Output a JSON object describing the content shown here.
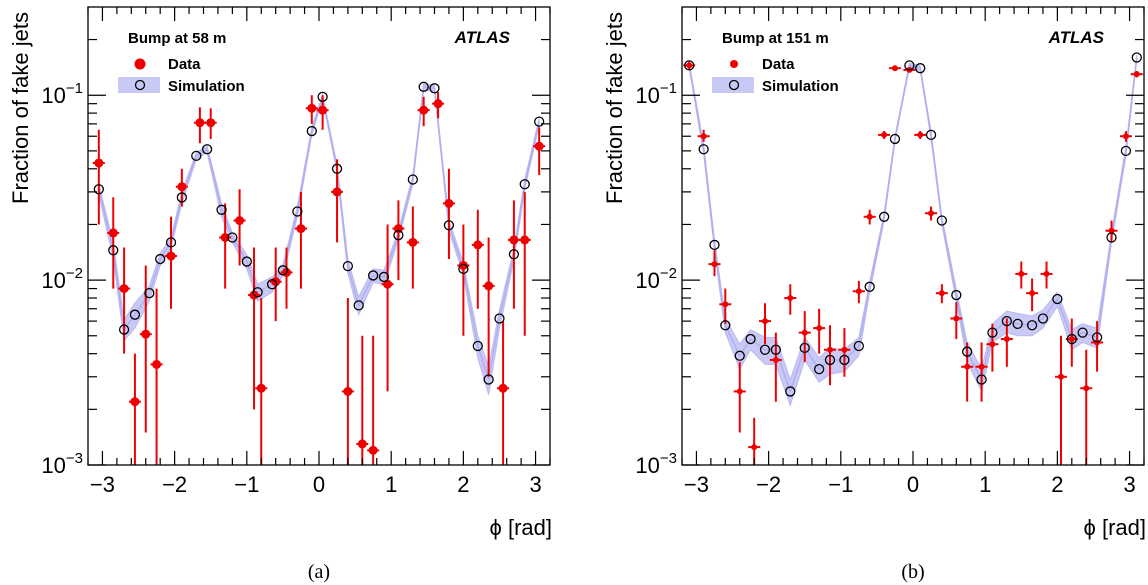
{
  "chart_data": [
    {
      "type": "scatter",
      "panel_label": "(a)",
      "xlabel": "ϕ [rad]",
      "ylabel": "Fraction of fake jets",
      "xlim": [
        -3.2,
        3.2
      ],
      "ylim": [
        0.001,
        0.3
      ],
      "yscale": "log",
      "xticks": [
        -3,
        -2,
        -1,
        0,
        1,
        2,
        3
      ],
      "xtick_labels": [
        "−3",
        "−2",
        "−1",
        "0",
        "1",
        "2",
        "3"
      ],
      "ytick_labels": [
        {
          "value": 0.001,
          "base": "10",
          "exp": "−3"
        },
        {
          "value": 0.01,
          "base": "10",
          "exp": "−2"
        },
        {
          "value": 0.1,
          "base": "10",
          "exp": "−1"
        }
      ],
      "legend_title": "Bump at 58 m",
      "experiment_label": "ATLAS",
      "legend_position": "top-left",
      "series": [
        {
          "name": "Data",
          "style": "red-dot-error",
          "color": "#ee0000",
          "x": [
            -3.05,
            -2.85,
            -2.7,
            -2.55,
            -2.4,
            -2.25,
            -2.05,
            -1.9,
            -1.65,
            -1.5,
            -1.3,
            -1.1,
            -0.9,
            -0.8,
            -0.6,
            -0.45,
            -0.25,
            -0.1,
            0.05,
            0.25,
            0.4,
            0.6,
            0.75,
            0.95,
            1.1,
            1.3,
            1.45,
            1.65,
            1.8,
            2.0,
            2.2,
            2.35,
            2.55,
            2.7,
            2.85,
            3.05
          ],
          "y": [
            0.043,
            0.018,
            0.009,
            0.0022,
            0.0051,
            0.0035,
            0.0135,
            0.032,
            0.071,
            0.071,
            0.017,
            0.021,
            0.0083,
            0.0026,
            0.0098,
            0.011,
            0.019,
            0.085,
            0.083,
            0.03,
            0.0025,
            0.0013,
            0.0012,
            0.0095,
            0.019,
            0.016,
            0.083,
            0.09,
            0.026,
            0.012,
            0.0155,
            0.0093,
            0.0026,
            0.0165,
            0.0165,
            0.053
          ],
          "ylo": [
            0.02,
            0.009,
            0.004,
            0.0008,
            0.0015,
            0.0008,
            0.007,
            0.025,
            0.055,
            0.058,
            0.009,
            0.012,
            0.002,
            0.0006,
            0.006,
            0.007,
            0.009,
            0.07,
            0.065,
            0.016,
            0.0006,
            0.0004,
            0.0003,
            0.0025,
            0.01,
            0.009,
            0.068,
            0.075,
            0.013,
            0.005,
            0.007,
            0.003,
            0.0007,
            0.007,
            0.005,
            0.037
          ],
          "yhi": [
            0.065,
            0.028,
            0.015,
            0.004,
            0.012,
            0.009,
            0.022,
            0.04,
            0.086,
            0.085,
            0.026,
            0.031,
            0.015,
            0.008,
            0.015,
            0.015,
            0.03,
            0.1,
            0.1,
            0.045,
            0.008,
            0.005,
            0.005,
            0.02,
            0.027,
            0.025,
            0.098,
            0.104,
            0.04,
            0.02,
            0.024,
            0.017,
            0.006,
            0.027,
            0.03,
            0.067
          ]
        },
        {
          "name": "Simulation",
          "style": "open-circle-band",
          "color": "#aaaaff",
          "x": [
            -3.05,
            -2.85,
            -2.7,
            -2.55,
            -2.35,
            -2.2,
            -2.05,
            -1.9,
            -1.7,
            -1.55,
            -1.35,
            -1.2,
            -1.0,
            -0.85,
            -0.65,
            -0.5,
            -0.3,
            -0.1,
            0.05,
            0.25,
            0.4,
            0.55,
            0.75,
            0.9,
            1.1,
            1.3,
            1.45,
            1.6,
            1.8,
            2.0,
            2.2,
            2.35,
            2.5,
            2.7,
            2.85,
            3.05
          ],
          "y": [
            0.031,
            0.0145,
            0.0054,
            0.0065,
            0.0085,
            0.013,
            0.016,
            0.028,
            0.047,
            0.051,
            0.024,
            0.017,
            0.0126,
            0.0086,
            0.0095,
            0.0113,
            0.0235,
            0.064,
            0.098,
            0.04,
            0.0119,
            0.0073,
            0.0106,
            0.0104,
            0.0175,
            0.035,
            0.111,
            0.109,
            0.0198,
            0.0115,
            0.0044,
            0.0029,
            0.0062,
            0.0138,
            0.033,
            0.072
          ],
          "band_lo": [
            0.029,
            0.013,
            0.0047,
            0.0055,
            0.0077,
            0.012,
            0.015,
            0.026,
            0.045,
            0.049,
            0.022,
            0.016,
            0.0115,
            0.0077,
            0.0086,
            0.0105,
            0.022,
            0.061,
            0.095,
            0.038,
            0.0109,
            0.0065,
            0.0097,
            0.0095,
            0.0165,
            0.033,
            0.107,
            0.105,
            0.0185,
            0.0106,
            0.0038,
            0.0024,
            0.0055,
            0.0128,
            0.031,
            0.069
          ],
          "band_hi": [
            0.033,
            0.016,
            0.0061,
            0.0075,
            0.0093,
            0.014,
            0.017,
            0.03,
            0.049,
            0.053,
            0.026,
            0.018,
            0.0137,
            0.0095,
            0.0104,
            0.0121,
            0.025,
            0.067,
            0.101,
            0.042,
            0.0129,
            0.0081,
            0.0115,
            0.0113,
            0.0185,
            0.037,
            0.115,
            0.113,
            0.0211,
            0.0124,
            0.005,
            0.0034,
            0.0069,
            0.0148,
            0.035,
            0.075
          ]
        }
      ]
    },
    {
      "type": "scatter",
      "panel_label": "(b)",
      "xlabel": "ϕ [rad]",
      "ylabel": "Fraction of fake jets",
      "xlim": [
        -3.2,
        3.2
      ],
      "ylim": [
        0.001,
        0.3
      ],
      "yscale": "log",
      "xticks": [
        -3,
        -2,
        -1,
        0,
        1,
        2,
        3
      ],
      "xtick_labels": [
        "−3",
        "−2",
        "−1",
        "0",
        "1",
        "2",
        "3"
      ],
      "ytick_labels": [
        {
          "value": 0.001,
          "base": "10",
          "exp": "−3"
        },
        {
          "value": 0.01,
          "base": "10",
          "exp": "−2"
        },
        {
          "value": 0.1,
          "base": "10",
          "exp": "−1"
        }
      ],
      "legend_title": "Bump at 151 m",
      "experiment_label": "ATLAS",
      "legend_position": "top-left",
      "series": [
        {
          "name": "Data",
          "style": "red-small-dot-error",
          "color": "#ee0000",
          "x": [
            -3.1,
            -2.9,
            -2.75,
            -2.6,
            -2.4,
            -2.2,
            -2.05,
            -1.9,
            -1.7,
            -1.5,
            -1.3,
            -1.15,
            -0.95,
            -0.75,
            -0.6,
            -0.4,
            -0.25,
            -0.05,
            0.1,
            0.25,
            0.4,
            0.6,
            0.75,
            0.95,
            1.1,
            1.3,
            1.5,
            1.65,
            1.85,
            2.05,
            2.2,
            2.4,
            2.55,
            2.75,
            2.95,
            3.1
          ],
          "y": [
            0.145,
            0.06,
            0.0122,
            0.0074,
            0.0025,
            0.00125,
            0.006,
            0.0037,
            0.008,
            0.0052,
            0.0055,
            0.0042,
            0.0042,
            0.0087,
            0.022,
            0.061,
            0.14,
            0.137,
            0.061,
            0.023,
            0.0085,
            0.0062,
            0.0034,
            0.0034,
            0.0045,
            0.0048,
            0.0108,
            0.0085,
            0.0108,
            0.003,
            0.0048,
            0.0026,
            0.0046,
            0.0185,
            0.06,
            0.13
          ],
          "ylo": [
            0.138,
            0.056,
            0.0105,
            0.0058,
            0.0015,
            0.0008,
            0.0045,
            0.0022,
            0.0065,
            0.0036,
            0.004,
            0.0027,
            0.003,
            0.0075,
            0.02,
            0.058,
            0.136,
            0.133,
            0.058,
            0.021,
            0.0075,
            0.0048,
            0.0022,
            0.0022,
            0.0032,
            0.0034,
            0.009,
            0.0068,
            0.009,
            0.001,
            0.0034,
            0.001,
            0.0032,
            0.016,
            0.056,
            0.125
          ],
          "yhi": [
            0.152,
            0.065,
            0.0145,
            0.009,
            0.0036,
            0.0018,
            0.0075,
            0.0052,
            0.0095,
            0.0068,
            0.007,
            0.0057,
            0.0055,
            0.0099,
            0.024,
            0.064,
            0.144,
            0.141,
            0.064,
            0.025,
            0.0095,
            0.0076,
            0.0046,
            0.0046,
            0.0058,
            0.0062,
            0.0126,
            0.0102,
            0.0126,
            0.005,
            0.0062,
            0.0042,
            0.006,
            0.021,
            0.064,
            0.135
          ]
        },
        {
          "name": "Simulation",
          "style": "open-circle-band",
          "color": "#aaaaff",
          "x": [
            -3.1,
            -2.9,
            -2.75,
            -2.6,
            -2.4,
            -2.25,
            -2.05,
            -1.9,
            -1.7,
            -1.5,
            -1.3,
            -1.15,
            -0.95,
            -0.75,
            -0.6,
            -0.4,
            -0.25,
            -0.05,
            0.1,
            0.25,
            0.4,
            0.6,
            0.75,
            0.95,
            1.1,
            1.3,
            1.45,
            1.65,
            1.8,
            2.0,
            2.2,
            2.35,
            2.55,
            2.75,
            2.95,
            3.1
          ],
          "y": [
            0.145,
            0.051,
            0.0155,
            0.0057,
            0.0039,
            0.0048,
            0.0042,
            0.0042,
            0.0025,
            0.0043,
            0.0033,
            0.0037,
            0.0037,
            0.0044,
            0.0092,
            0.022,
            0.058,
            0.145,
            0.14,
            0.061,
            0.021,
            0.0083,
            0.0041,
            0.0029,
            0.0052,
            0.006,
            0.0058,
            0.0057,
            0.0062,
            0.0079,
            0.0048,
            0.0052,
            0.0049,
            0.017,
            0.05,
            0.16
          ],
          "band_lo": [
            0.14,
            0.048,
            0.0145,
            0.0052,
            0.0033,
            0.0042,
            0.0035,
            0.0035,
            0.0021,
            0.0037,
            0.0028,
            0.0031,
            0.0032,
            0.0039,
            0.0086,
            0.021,
            0.056,
            0.141,
            0.136,
            0.058,
            0.02,
            0.0077,
            0.0036,
            0.0025,
            0.0046,
            0.0052,
            0.005,
            0.005,
            0.0055,
            0.0072,
            0.0042,
            0.0046,
            0.0043,
            0.016,
            0.047,
            0.155
          ],
          "band_hi": [
            0.15,
            0.054,
            0.0165,
            0.0062,
            0.0045,
            0.0054,
            0.0049,
            0.0049,
            0.0029,
            0.0049,
            0.0038,
            0.0043,
            0.0042,
            0.0049,
            0.0098,
            0.023,
            0.06,
            0.149,
            0.144,
            0.064,
            0.022,
            0.0089,
            0.0046,
            0.0033,
            0.0058,
            0.0068,
            0.0066,
            0.0064,
            0.0069,
            0.0086,
            0.0054,
            0.0058,
            0.0055,
            0.018,
            0.053,
            0.165
          ]
        }
      ]
    }
  ]
}
